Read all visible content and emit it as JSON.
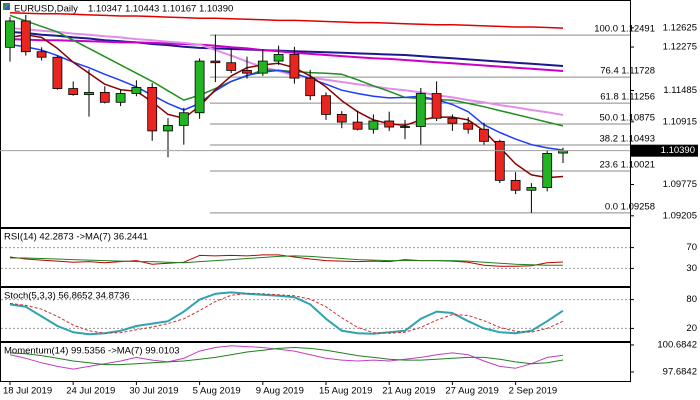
{
  "chart_data": [
    {
      "type": "candlestick",
      "title": "EURUSD,Daily",
      "subtitle": "1.10347 1.10443 1.10167 1.10390",
      "categories": [
        "18 Jul 2019",
        null,
        null,
        null,
        "24 Jul 2019",
        null,
        null,
        null,
        "30 Jul 2019",
        null,
        null,
        null,
        "5 Aug 2019",
        null,
        null,
        null,
        "9 Aug 2019",
        null,
        null,
        null,
        "15 Aug 2019",
        null,
        null,
        null,
        "21 Aug 2019",
        null,
        null,
        null,
        "27 Aug 2019",
        null,
        null,
        null,
        "2 Sep 2019",
        null,
        null,
        null
      ],
      "open": [
        1.1227,
        1.1275,
        1.1219,
        1.1209,
        1.1152,
        1.1141,
        1.1145,
        1.1127,
        1.1143,
        1.1154,
        1.1075,
        1.1085,
        1.1108,
        1.1202,
        1.1199,
        1.1185,
        1.118,
        1.1202,
        1.1214,
        1.1171,
        1.1139,
        1.1105,
        1.1091,
        1.1078,
        1.1093,
        1.1082,
        1.1083,
        1.1143,
        1.1098,
        1.1089,
        1.1078,
        1.1056,
        1.0985,
        1.0967,
        1.0972,
        1.10347
      ],
      "high": [
        1.1282,
        1.1286,
        1.1227,
        1.1212,
        1.1165,
        1.1187,
        1.1156,
        1.115,
        1.1167,
        1.1162,
        1.1098,
        1.1117,
        1.1207,
        1.125,
        1.1225,
        1.121,
        1.1224,
        1.123,
        1.1228,
        1.1186,
        1.1145,
        1.1111,
        1.1112,
        1.1105,
        1.111,
        1.1095,
        1.1153,
        1.1165,
        1.1105,
        1.11,
        1.109,
        1.1059,
        1.1,
        1.098,
        1.104,
        1.10443
      ],
      "low": [
        1.1201,
        1.1212,
        1.1203,
        1.115,
        1.1139,
        1.1101,
        1.1125,
        1.112,
        1.1138,
        1.1057,
        1.1027,
        1.105,
        1.1097,
        1.1164,
        1.118,
        1.117,
        1.1175,
        1.1195,
        1.1161,
        1.1131,
        1.1095,
        1.108,
        1.1076,
        1.107,
        1.1075,
        1.106,
        1.105,
        1.1093,
        1.1075,
        1.107,
        1.105,
        1.098,
        1.096,
        1.0926,
        1.0965,
        1.10167
      ],
      "close": [
        1.1275,
        1.1219,
        1.1209,
        1.1152,
        1.1141,
        1.1145,
        1.1127,
        1.1143,
        1.1154,
        1.1075,
        1.1085,
        1.1108,
        1.1202,
        1.1199,
        1.1185,
        1.118,
        1.1202,
        1.1214,
        1.1171,
        1.1139,
        1.1105,
        1.1091,
        1.1078,
        1.1093,
        1.1082,
        1.1083,
        1.1143,
        1.1098,
        1.1089,
        1.1078,
        1.1056,
        1.0985,
        1.0967,
        1.0972,
        1.1034,
        1.1039
      ],
      "up_color": "#22b422",
      "down_color": "#e8251f",
      "series": [
        {
          "color": "#e00000",
          "width": 1.5,
          "values": [
            1.129,
            1.1289,
            1.1288,
            1.1288,
            1.1287,
            1.1286,
            1.1285,
            1.1284,
            1.1284,
            1.1283,
            1.1282,
            1.1281,
            1.128,
            1.128,
            1.1279,
            1.1278,
            1.1277,
            1.1276,
            1.1276,
            1.1275,
            1.1274,
            1.1273,
            1.1272,
            1.1272,
            1.1271,
            1.127,
            1.1269,
            1.1268,
            1.1268,
            1.1267,
            1.1266,
            1.1265,
            1.1264,
            1.1264,
            1.1263,
            1.1262
          ]
        },
        {
          "color": "#1a1a8c",
          "width": 2,
          "values": [
            1.1255,
            1.1253,
            1.125,
            1.1248,
            1.1245,
            1.1243,
            1.124,
            1.1238,
            1.1236,
            1.1233,
            1.1231,
            1.1228,
            1.1226,
            1.1225,
            1.1224,
            1.1223,
            1.1222,
            1.1221,
            1.122,
            1.1219,
            1.1218,
            1.1217,
            1.1216,
            1.1215,
            1.1214,
            1.1213,
            1.1211,
            1.1209,
            1.1207,
            1.1205,
            1.1203,
            1.1201,
            1.1199,
            1.1197,
            1.1195,
            1.1193
          ]
        },
        {
          "color": "#c800c8",
          "width": 2,
          "values": [
            1.1242,
            1.1241,
            1.124,
            1.124,
            1.1239,
            1.1238,
            1.1237,
            1.1236,
            1.1236,
            1.1235,
            1.1234,
            1.1233,
            1.1232,
            1.123,
            1.1227,
            1.1225,
            1.1222,
            1.122,
            1.1217,
            1.1215,
            1.1213,
            1.1211,
            1.1209,
            1.1207,
            1.1206,
            1.1204,
            1.1202,
            1.12,
            1.1198,
            1.1196,
            1.1194,
            1.1192,
            1.119,
            1.1188,
            1.1186,
            1.1184
          ]
        },
        {
          "color": "#e08ee8",
          "width": 2,
          "values": [
            1.1262,
            1.126,
            1.1257,
            1.1255,
            1.1252,
            1.125,
            1.1247,
            1.1245,
            1.1242,
            1.124,
            1.1237,
            1.1235,
            1.1232,
            1.1222,
            1.1212,
            1.1201,
            1.1191,
            1.1184,
            1.1176,
            1.1172,
            1.1168,
            1.1164,
            1.116,
            1.1156,
            1.1152,
            1.1149,
            1.1145,
            1.114,
            1.1136,
            1.1131,
            1.1127,
            1.1122,
            1.1118,
            1.1113,
            1.1109,
            1.1104
          ]
        },
        {
          "color": "#1f8f1f",
          "width": 1.5,
          "values": [
            1.1285,
            1.1275,
            1.1265,
            1.1255,
            1.124,
            1.1225,
            1.121,
            1.1195,
            1.118,
            1.1165,
            1.1148,
            1.1131,
            1.114,
            1.1152,
            1.1165,
            1.1175,
            1.1186,
            1.1185,
            1.1183,
            1.1181,
            1.118,
            1.1178,
            1.1168,
            1.1157,
            1.1147,
            1.1136,
            1.1134,
            1.1132,
            1.1131,
            1.1125,
            1.1119,
            1.1112,
            1.1105,
            1.1098,
            1.1091,
            1.1084
          ]
        },
        {
          "color": "#1e3cff",
          "width": 1.5,
          "values": [
            1.1232,
            1.1228,
            1.1222,
            1.1212,
            1.12,
            1.119,
            1.1178,
            1.1167,
            1.1155,
            1.114,
            1.1125,
            1.1113,
            1.1125,
            1.1148,
            1.1165,
            1.1176,
            1.1182,
            1.1185,
            1.118,
            1.117,
            1.116,
            1.1149,
            1.1143,
            1.1138,
            1.1135,
            1.1136,
            1.1138,
            1.1132,
            1.1123,
            1.111,
            1.1086,
            1.1072,
            1.106,
            1.105,
            1.1044,
            1.104
          ]
        },
        {
          "color": "#8b0000",
          "width": 1.5,
          "values": [
            1.1245,
            1.125,
            1.1245,
            1.1225,
            1.12,
            1.118,
            1.116,
            1.115,
            1.1147,
            1.1128,
            1.1105,
            1.1098,
            1.112,
            1.115,
            1.1175,
            1.119,
            1.1195,
            1.1198,
            1.119,
            1.1175,
            1.1155,
            1.113,
            1.111,
            1.1095,
            1.1088,
            1.1085,
            1.1095,
            1.11,
            1.11,
            1.1095,
            1.1075,
            1.1045,
            1.1015,
            1.0995,
            1.099,
            1.0992
          ]
        }
      ],
      "fibo": [
        {
          "label": "100.0 1.12491",
          "value": 1.12491
        },
        {
          "label": "76.4 1.11728",
          "value": 1.11728
        },
        {
          "label": "61.8 1.11256",
          "value": 1.11256
        },
        {
          "label": "50.0 1.10875",
          "value": 1.10875
        },
        {
          "label": "38.2 1.10493",
          "value": 1.10493
        },
        {
          "label": "23.6 1.10021",
          "value": 1.10021
        },
        {
          "label": "0.0 1.09258",
          "value": 1.09258
        }
      ],
      "last_price": {
        "value": 1.1039,
        "label": "1.10390"
      },
      "ylim": [
        1.0902,
        1.1304
      ],
      "yticks": [
        1.12625,
        1.12275,
        1.11485,
        1.10915,
        1.09775,
        1.09205
      ],
      "grid": false
    },
    {
      "type": "line",
      "title": "RSI(14) 42.2873 ->MA(7) 36.2441",
      "series": [
        {
          "color": "#c00000",
          "width": 1,
          "values": [
            52,
            48,
            46,
            44,
            42,
            43,
            41,
            43,
            45,
            38,
            40,
            42,
            55,
            54,
            55,
            54,
            56,
            56,
            52,
            48,
            45,
            44,
            43,
            44,
            43,
            47,
            45,
            45,
            44,
            42,
            36,
            34,
            34,
            35,
            41,
            42.29
          ]
        },
        {
          "color": "#208020",
          "width": 1,
          "values": [
            50,
            50,
            49,
            48,
            47,
            46,
            45,
            44,
            43,
            43,
            42,
            41,
            43,
            45,
            47,
            49,
            51,
            53,
            54,
            53,
            51,
            49,
            47,
            46,
            45,
            45,
            45,
            45,
            45,
            44,
            42,
            40,
            38,
            37,
            36,
            36.24
          ]
        }
      ],
      "ylim": [
        0,
        100
      ],
      "yticks": [
        70,
        30
      ],
      "grid": true
    },
    {
      "type": "line",
      "title": "Stoch(5,3,3) 56.8652 34.8736",
      "series": [
        {
          "color": "#2fa3b0",
          "width": 2,
          "values": [
            70,
            65,
            45,
            25,
            12,
            8,
            10,
            15,
            25,
            30,
            35,
            55,
            80,
            92,
            95,
            92,
            90,
            88,
            85,
            70,
            40,
            15,
            10,
            9,
            12,
            15,
            40,
            55,
            52,
            35,
            20,
            12,
            10,
            15,
            35,
            56.87
          ]
        },
        {
          "color": "#d03030",
          "width": 1,
          "dash": true,
          "values": [
            72,
            68,
            60,
            45,
            27,
            15,
            10,
            11,
            17,
            23,
            30,
            40,
            57,
            76,
            89,
            93,
            92,
            90,
            88,
            81,
            65,
            42,
            22,
            11,
            10,
            12,
            22,
            37,
            49,
            47,
            36,
            22,
            14,
            12,
            20,
            34.87
          ]
        }
      ],
      "ylim": [
        0,
        100
      ],
      "yticks": [
        80,
        20
      ],
      "grid": true
    },
    {
      "type": "line",
      "title": "Momentum(14) 99.5356 ->MA(7) 99.0103",
      "series": [
        {
          "color": "#c040c0",
          "width": 1,
          "values": [
            99.6,
            99.2,
            98.7,
            98.3,
            98.0,
            98.3,
            98.6,
            98.9,
            99.3,
            99.0,
            98.8,
            99.2,
            100.0,
            100.4,
            100.6,
            100.5,
            100.4,
            100.2,
            100.0,
            99.6,
            99.2,
            99.0,
            98.9,
            99.0,
            98.9,
            99.1,
            99.3,
            99.6,
            99.8,
            99.6,
            98.9,
            98.3,
            98.1,
            98.6,
            99.3,
            99.54
          ]
        },
        {
          "color": "#208020",
          "width": 1,
          "values": [
            99.8,
            99.7,
            99.5,
            99.2,
            98.9,
            98.7,
            98.5,
            98.5,
            98.6,
            98.7,
            98.8,
            98.9,
            99.1,
            99.3,
            99.6,
            99.9,
            100.1,
            100.3,
            100.4,
            100.3,
            100.1,
            99.8,
            99.5,
            99.3,
            99.1,
            99.0,
            99.0,
            99.1,
            99.2,
            99.3,
            99.3,
            99.1,
            98.8,
            98.6,
            98.7,
            99.01
          ]
        }
      ],
      "ylim": [
        96.68,
        100.9
      ],
      "yticks": [
        100.6842,
        97.6842
      ],
      "grid": false
    }
  ]
}
